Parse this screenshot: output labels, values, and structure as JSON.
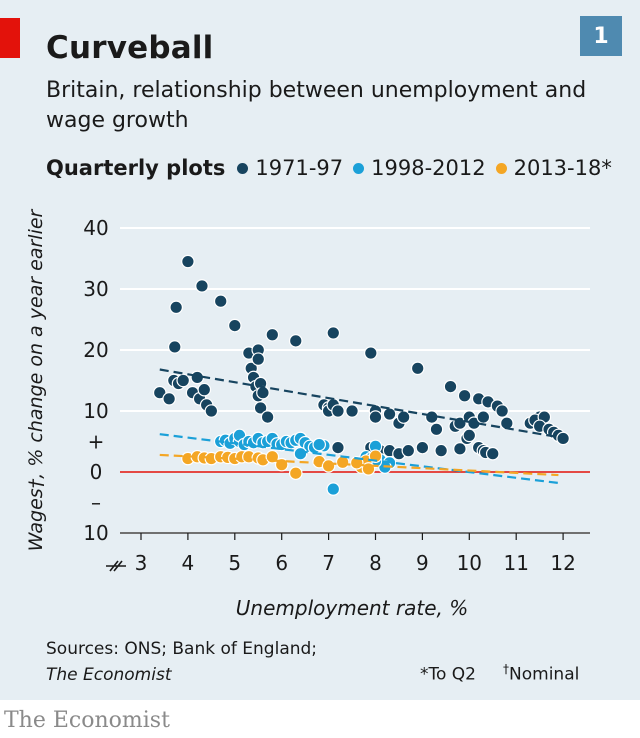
{
  "header": {
    "title": "Curveball",
    "badge": "1"
  },
  "subtitle": "Britain, relationship between unemployment and wage growth",
  "legend_title": "Quarterly plots",
  "footer": {
    "sources_line1": "Sources: ONS; Bank of England;",
    "sources_line2": "The Economist",
    "note1": "*To Q2",
    "note2_mark": "†",
    "note2_text": "Nominal",
    "brand": "The Economist"
  },
  "colors": {
    "background": "#e6eef3",
    "accent_red": "#e3120b",
    "badge": "#4f8ab0"
  },
  "chart_data": {
    "type": "scatter",
    "xlabel": "Unemployment rate, %",
    "ylabel": "Wages†, % change on a year earlier",
    "x_ticks": [
      "3",
      "4",
      "5",
      "6",
      "7",
      "8",
      "9",
      "10",
      "11",
      "12"
    ],
    "y_tick_labels": [
      "40",
      "30",
      "20",
      "10",
      "+",
      "0",
      "–",
      "10"
    ],
    "xlim": [
      2.5,
      12.6
    ],
    "ylim": [
      -10,
      40
    ],
    "grid": true,
    "legend_position": "top",
    "series": [
      {
        "name": "1971-97",
        "color": "#17445f",
        "points": [
          [
            3.4,
            13
          ],
          [
            3.6,
            12
          ],
          [
            3.7,
            15
          ],
          [
            3.75,
            27
          ],
          [
            3.72,
            20.5
          ],
          [
            3.8,
            14.5
          ],
          [
            3.9,
            15
          ],
          [
            4.0,
            34.5
          ],
          [
            4.1,
            13
          ],
          [
            4.2,
            15.5
          ],
          [
            4.25,
            12
          ],
          [
            4.3,
            30.5
          ],
          [
            4.35,
            13.5
          ],
          [
            4.4,
            11
          ],
          [
            4.5,
            10
          ],
          [
            4.7,
            28
          ],
          [
            5.0,
            24
          ],
          [
            5.3,
            19.5
          ],
          [
            5.35,
            17
          ],
          [
            5.4,
            15.5
          ],
          [
            5.45,
            14
          ],
          [
            5.5,
            20
          ],
          [
            5.5,
            18.5
          ],
          [
            5.55,
            14.5
          ],
          [
            5.5,
            12.5
          ],
          [
            5.6,
            13
          ],
          [
            5.55,
            10.5
          ],
          [
            5.7,
            9
          ],
          [
            5.8,
            22.5
          ],
          [
            6.3,
            21.5
          ],
          [
            6.9,
            11
          ],
          [
            7.0,
            10.5
          ],
          [
            7.0,
            10
          ],
          [
            7.1,
            11
          ],
          [
            7.1,
            22.8
          ],
          [
            7.2,
            10
          ],
          [
            7.5,
            10
          ],
          [
            7.9,
            19.5
          ],
          [
            8.0,
            10
          ],
          [
            8.0,
            9
          ],
          [
            8.3,
            9.5
          ],
          [
            8.5,
            8
          ],
          [
            8.6,
            9
          ],
          [
            8.9,
            17
          ],
          [
            9.2,
            9
          ],
          [
            9.3,
            7
          ],
          [
            9.6,
            14
          ],
          [
            9.7,
            7.5
          ],
          [
            9.8,
            8
          ],
          [
            9.9,
            12.5
          ],
          [
            10.0,
            9
          ],
          [
            10.1,
            8
          ],
          [
            10.2,
            12
          ],
          [
            10.3,
            9
          ],
          [
            10.4,
            11.5
          ],
          [
            10.6,
            10.8
          ],
          [
            10.7,
            10
          ],
          [
            10.8,
            8
          ],
          [
            11.3,
            8
          ],
          [
            11.5,
            9
          ],
          [
            11.4,
            8.5
          ],
          [
            11.6,
            9
          ],
          [
            11.5,
            7.5
          ],
          [
            11.7,
            7
          ],
          [
            11.8,
            6.5
          ],
          [
            11.9,
            6
          ],
          [
            12.0,
            5.5
          ],
          [
            7.2,
            4
          ],
          [
            7.9,
            4
          ],
          [
            8.1,
            3.5
          ],
          [
            8.3,
            3.5
          ],
          [
            8.5,
            3
          ],
          [
            8.7,
            3.5
          ],
          [
            9.0,
            4
          ],
          [
            9.4,
            3.5
          ],
          [
            9.8,
            3.8
          ],
          [
            9.95,
            5.5
          ],
          [
            10.2,
            4
          ],
          [
            10.3,
            3.5
          ],
          [
            10.35,
            3.2
          ],
          [
            10.5,
            3
          ],
          [
            10.0,
            6
          ]
        ]
      },
      {
        "name": "1998-2012",
        "color": "#1ba0d8",
        "points": [
          [
            4.7,
            5
          ],
          [
            4.8,
            5.2
          ],
          [
            4.9,
            4.7
          ],
          [
            5.0,
            5.5
          ],
          [
            5.1,
            5
          ],
          [
            5.1,
            6
          ],
          [
            5.2,
            4.5
          ],
          [
            5.3,
            5
          ],
          [
            5.4,
            4.8
          ],
          [
            5.5,
            5.5
          ],
          [
            5.6,
            4.8
          ],
          [
            5.7,
            5
          ],
          [
            5.8,
            5.5
          ],
          [
            5.9,
            4.6
          ],
          [
            6.0,
            4.5
          ],
          [
            6.1,
            5
          ],
          [
            6.2,
            4.8
          ],
          [
            6.3,
            5.2
          ],
          [
            6.4,
            5.5
          ],
          [
            6.5,
            4.8
          ],
          [
            6.6,
            4.2
          ],
          [
            6.7,
            4
          ],
          [
            6.9,
            4.3
          ],
          [
            7.1,
            -2.8
          ],
          [
            7.8,
            2.5
          ],
          [
            7.9,
            2.2
          ],
          [
            8.0,
            4.2
          ],
          [
            8.1,
            2
          ],
          [
            8.3,
            1.5
          ],
          [
            8.2,
            0.8
          ],
          [
            8.0,
            1.8
          ],
          [
            6.4,
            3
          ],
          [
            6.8,
            4.5
          ]
        ]
      },
      {
        "name": "2013-18*",
        "color": "#f4a624",
        "points": [
          [
            4.0,
            2.2
          ],
          [
            4.2,
            2.5
          ],
          [
            4.35,
            2.3
          ],
          [
            4.5,
            2.2
          ],
          [
            4.7,
            2.5
          ],
          [
            4.85,
            2.4
          ],
          [
            5.0,
            2.2
          ],
          [
            5.15,
            2.5
          ],
          [
            5.3,
            2.5
          ],
          [
            5.5,
            2.3
          ],
          [
            5.6,
            2
          ],
          [
            5.8,
            2.5
          ],
          [
            6.0,
            1.2
          ],
          [
            6.3,
            -0.2
          ],
          [
            6.8,
            1.7
          ],
          [
            7.0,
            1
          ],
          [
            7.3,
            1.6
          ],
          [
            7.7,
            0.8
          ],
          [
            7.8,
            1.8
          ],
          [
            7.85,
            0.5
          ],
          [
            8.0,
            2.6
          ],
          [
            7.6,
            1.5
          ]
        ]
      }
    ],
    "trend_lines": [
      {
        "series": "1971-97",
        "color": "#17445f",
        "from": [
          3.4,
          16.8
        ],
        "to": [
          12.0,
          5.6
        ]
      },
      {
        "series": "1998-2012",
        "color": "#1ba0d8",
        "from": [
          3.4,
          6.2
        ],
        "to": [
          11.9,
          -1.8
        ]
      },
      {
        "series": "2013-18*",
        "color": "#f4a624",
        "from": [
          3.4,
          2.8
        ],
        "to": [
          11.9,
          -0.5
        ]
      }
    ]
  }
}
